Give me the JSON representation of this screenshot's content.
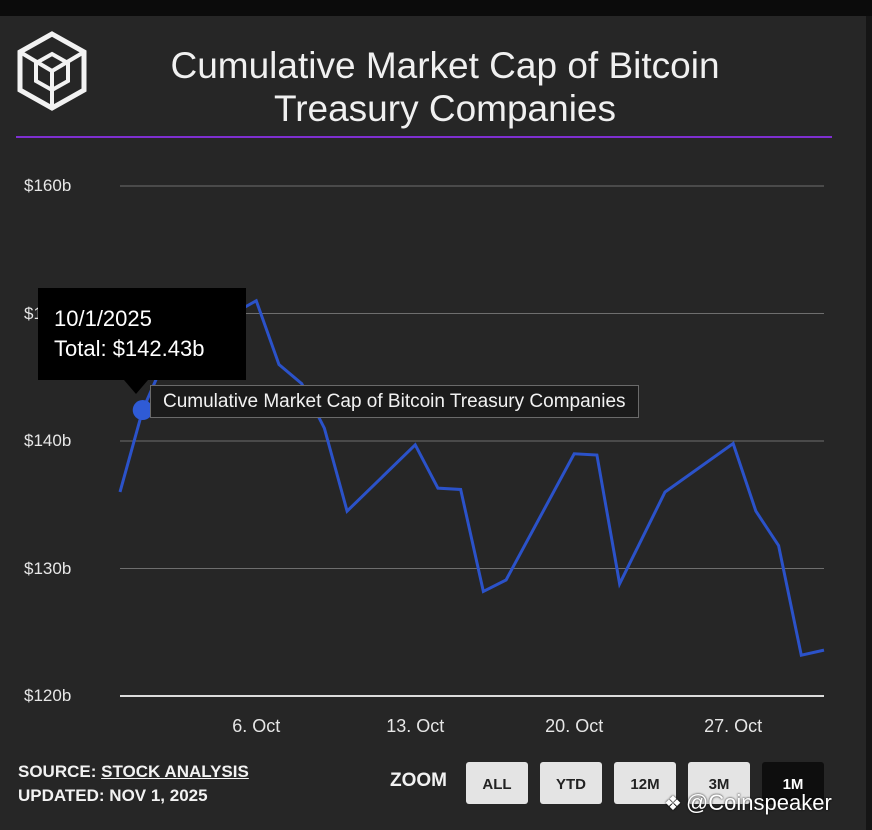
{
  "title": "Cumulative Market Cap of Bitcoin Treasury Companies",
  "colors": {
    "accent_rule": "#7e2fd0",
    "line": "#2b52c9",
    "gridline": "#6e6e6e"
  },
  "tooltip": {
    "date": "10/1/2025",
    "total": "Total: $142.43b"
  },
  "series_tooltip": "Cumulative Market Cap of Bitcoin Treasury Companies",
  "source": {
    "label": "SOURCE:",
    "name": "STOCK ANALYSIS",
    "updated": "UPDATED: NOV 1, 2025"
  },
  "zoom": {
    "label": "ZOOM",
    "buttons": [
      "ALL",
      "YTD",
      "12M",
      "3M",
      "1M"
    ],
    "active": "1M"
  },
  "watermark": "@Coinspeaker",
  "chart_data": {
    "type": "line",
    "title": "Cumulative Market Cap of Bitcoin Treasury Companies",
    "y_tick_labels": [
      "$160b",
      "$150b",
      "$140b",
      "$130b",
      "$120b"
    ],
    "y_ticks": [
      160,
      150,
      140,
      130,
      120
    ],
    "ylim": [
      120,
      160
    ],
    "x_tick_labels": [
      "6. Oct",
      "13. Oct",
      "20. Oct",
      "27. Oct"
    ],
    "x_ticks": [
      "2025-10-06",
      "2025-10-13",
      "2025-10-20",
      "2025-10-27"
    ],
    "xlim": [
      "2025-09-30",
      "2025-10-31"
    ],
    "grid": true,
    "legend": "none",
    "series": [
      {
        "color": "#2b52c9",
        "points": [
          {
            "x": "2025-09-30",
            "y": 136.0
          },
          {
            "x": "2025-10-01",
            "y": 142.43
          },
          {
            "x": "2025-10-02",
            "y": 146.5
          },
          {
            "x": "2025-10-03",
            "y": 148.5
          },
          {
            "x": "2025-10-04",
            "y": 149.5
          },
          {
            "x": "2025-10-05",
            "y": 150.0
          },
          {
            "x": "2025-10-06",
            "y": 151.0
          },
          {
            "x": "2025-10-07",
            "y": 146.0
          },
          {
            "x": "2025-10-08",
            "y": 144.5
          },
          {
            "x": "2025-10-09",
            "y": 141.0
          },
          {
            "x": "2025-10-10",
            "y": 134.5
          },
          {
            "x": "2025-10-13",
            "y": 139.7
          },
          {
            "x": "2025-10-14",
            "y": 136.3
          },
          {
            "x": "2025-10-15",
            "y": 136.2
          },
          {
            "x": "2025-10-16",
            "y": 128.2
          },
          {
            "x": "2025-10-17",
            "y": 129.1
          },
          {
            "x": "2025-10-20",
            "y": 139.0
          },
          {
            "x": "2025-10-21",
            "y": 138.9
          },
          {
            "x": "2025-10-22",
            "y": 128.8
          },
          {
            "x": "2025-10-24",
            "y": 136.0
          },
          {
            "x": "2025-10-27",
            "y": 139.8
          },
          {
            "x": "2025-10-28",
            "y": 134.5
          },
          {
            "x": "2025-10-29",
            "y": 131.8
          },
          {
            "x": "2025-10-30",
            "y": 123.2
          },
          {
            "x": "2025-10-31",
            "y": 123.6
          }
        ]
      }
    ]
  }
}
